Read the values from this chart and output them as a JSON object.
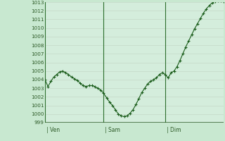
{
  "y_values": [
    1004.0,
    1003.2,
    1003.8,
    1004.3,
    1004.6,
    1004.9,
    1005.0,
    1004.8,
    1004.6,
    1004.3,
    1004.1,
    1003.9,
    1003.6,
    1003.3,
    1003.2,
    1003.3,
    1003.3,
    1003.2,
    1003.0,
    1002.8,
    1002.4,
    1001.9,
    1001.4,
    1001.0,
    1000.5,
    1000.0,
    999.8,
    999.7,
    999.8,
    1000.1,
    1000.5,
    1001.1,
    1001.8,
    1002.5,
    1003.0,
    1003.5,
    1003.8,
    1004.0,
    1004.2,
    1004.6,
    1004.8,
    1004.6,
    1004.2,
    1004.8,
    1005.0,
    1005.5,
    1006.2,
    1007.0,
    1007.8,
    1008.5,
    1009.2,
    1009.9,
    1010.5,
    1011.1,
    1011.7,
    1012.2,
    1012.6,
    1012.9,
    1013.1,
    1013.2,
    1013.2,
    1013.1
  ],
  "n_points": 62,
  "ven_idx": 0,
  "sam_idx": 20,
  "dim_idx": 41,
  "ven_label": "Ven",
  "sam_label": "Sam",
  "dim_label": "Dim",
  "ylim_min": 999,
  "ylim_max": 1013,
  "yticks": [
    999,
    1000,
    1001,
    1002,
    1003,
    1004,
    1005,
    1006,
    1007,
    1008,
    1009,
    1010,
    1011,
    1012,
    1013
  ],
  "fig_bg": "#c8e8d0",
  "plot_bg": "#d4eddc",
  "grid_color": "#b8c8b8",
  "line_color": "#1a5c1a",
  "vline_color": "#2d6e2d",
  "tick_color": "#2d5a27",
  "bottom_line_color": "#2d5a27",
  "label_color": "#2d5a27"
}
